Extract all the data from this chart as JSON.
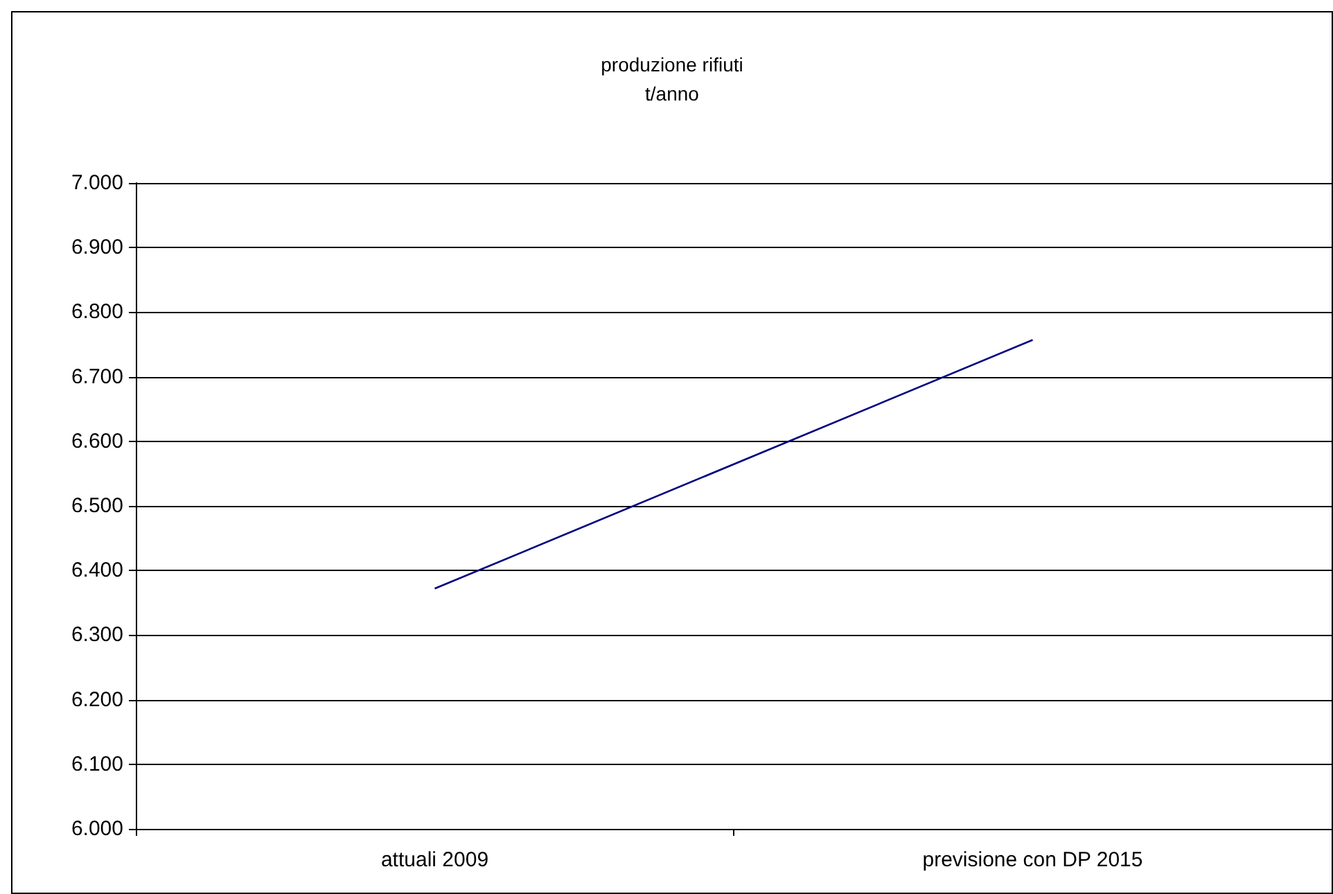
{
  "chart_data": {
    "type": "line",
    "title": "produzione rifiuti\nt/anno",
    "categories": [
      "attuali 2009",
      "previsione con DP 2015"
    ],
    "series": [
      {
        "color": "#000080",
        "values": [
          6372,
          6757
        ]
      }
    ],
    "ylim": [
      6000,
      7000
    ],
    "yticks": [
      {
        "value": 6000,
        "label": "6.000"
      },
      {
        "value": 6100,
        "label": "6.100"
      },
      {
        "value": 6200,
        "label": "6.200"
      },
      {
        "value": 6300,
        "label": "6.300"
      },
      {
        "value": 6400,
        "label": "6.400"
      },
      {
        "value": 6500,
        "label": "6.500"
      },
      {
        "value": 6600,
        "label": "6.600"
      },
      {
        "value": 6700,
        "label": "6.700"
      },
      {
        "value": 6800,
        "label": "6.800"
      },
      {
        "value": 6900,
        "label": "6.900"
      },
      {
        "value": 7000,
        "label": "7.000"
      }
    ],
    "grid": "y",
    "marker": "none",
    "line_style": "solid"
  }
}
